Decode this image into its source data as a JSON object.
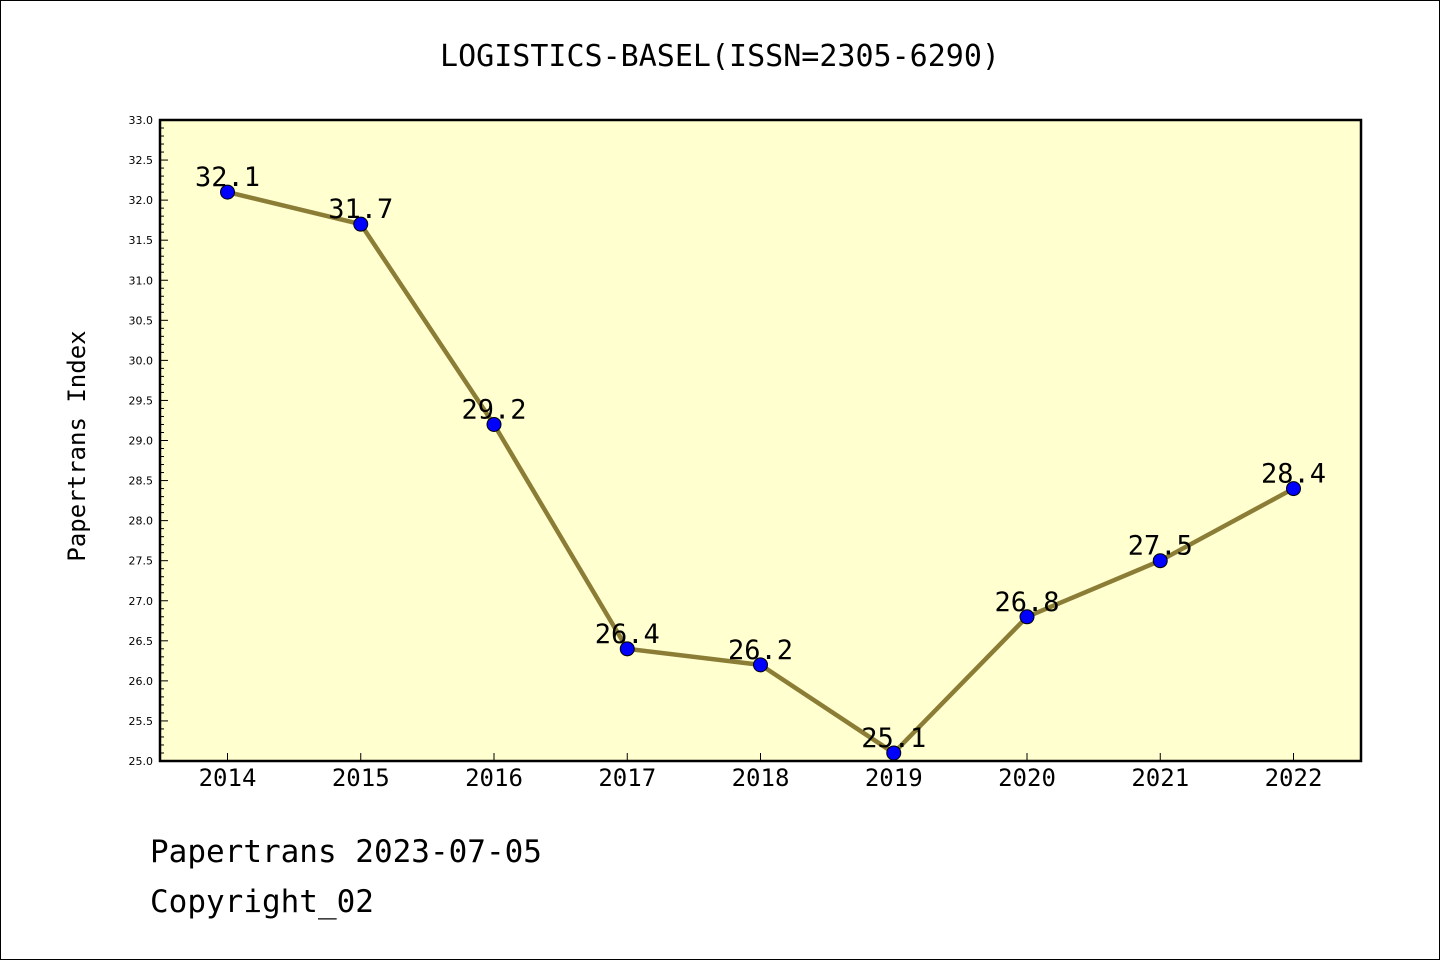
{
  "chart_data": {
    "type": "line",
    "title": "LOGISTICS-BASEL(ISSN=2305-6290)",
    "xlabel": "",
    "ylabel": "Papertrans Index",
    "categories": [
      "2014",
      "2015",
      "2016",
      "2017",
      "2018",
      "2019",
      "2020",
      "2021",
      "2022"
    ],
    "series": [
      {
        "values": [
          32.1,
          31.7,
          29.2,
          26.4,
          26.2,
          25.1,
          26.8,
          27.5,
          28.4
        ],
        "labels": [
          "32.1",
          "31.7",
          "29.2",
          "26.4",
          "26.2",
          "25.1",
          "26.8",
          "27.5",
          "28.4"
        ]
      }
    ],
    "ylim": [
      25.0,
      33.0
    ],
    "yticks": [
      "25.0",
      "25.5",
      "26.0",
      "26.5",
      "27.0",
      "27.5",
      "28.0",
      "28.5",
      "29.0",
      "29.5",
      "30.0",
      "30.5",
      "31.0",
      "31.5",
      "32.0",
      "32.5",
      "33.0"
    ],
    "grid": false,
    "colors": {
      "plot_background": "#ffffd0",
      "line": "#8b7d35",
      "marker": "#0000ff"
    }
  },
  "footer": {
    "line1": "Papertrans 2023-07-05",
    "line2": "Copyright_02"
  }
}
